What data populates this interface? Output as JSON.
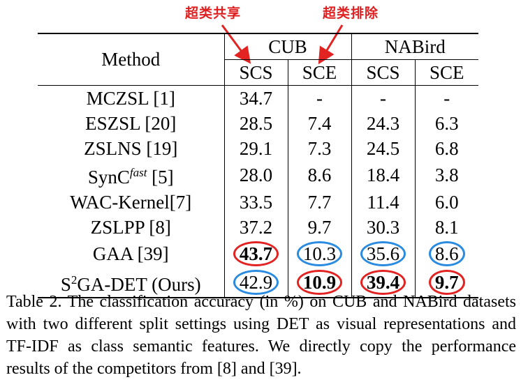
{
  "annotations": {
    "share": "超类共享",
    "exclude": "超类排除"
  },
  "header": {
    "method": "Method",
    "datasets": [
      "CUB",
      "NABird"
    ],
    "settings": [
      "SCS",
      "SCE",
      "SCS",
      "SCE"
    ]
  },
  "rows": [
    {
      "method": "MCZSL [1]",
      "values": [
        "34.7",
        "-",
        "-",
        "-"
      ]
    },
    {
      "method": "ESZSL [20]",
      "values": [
        "28.5",
        "7.4",
        "24.3",
        "6.3"
      ]
    },
    {
      "method": "ZSLNS [19]",
      "values": [
        "29.1",
        "7.3",
        "24.5",
        "6.8"
      ]
    },
    {
      "method_base": "SynC",
      "method_sup": "fast",
      "method_tail": " [5]",
      "values": [
        "28.0",
        "8.6",
        "18.4",
        "3.8"
      ]
    },
    {
      "method": "WAC-Kernel[7]",
      "values": [
        "33.5",
        "7.7",
        "11.4",
        "6.0"
      ]
    },
    {
      "method": "ZSLPP [8]",
      "values": [
        "37.2",
        "9.7",
        "30.3",
        "8.1"
      ]
    },
    {
      "method": "GAA [39]",
      "values": [
        "43.7",
        "10.3",
        "35.6",
        "8.6"
      ]
    },
    {
      "method_base": "S",
      "method_sup": "2",
      "method_tail": "GA-DET (Ours)",
      "values": [
        "42.9",
        "10.9",
        "39.4",
        "9.7"
      ]
    }
  ],
  "highlight_colors": {
    "best": "#e32222",
    "second": "#2a8be0"
  },
  "caption": "Table 2. The classification accuracy (in %) on CUB and NABird datasets with two different split settings using DET as visual representations and TF-IDF as class semantic features. We directly copy the performance results of the competitors from [8] and [39]."
}
